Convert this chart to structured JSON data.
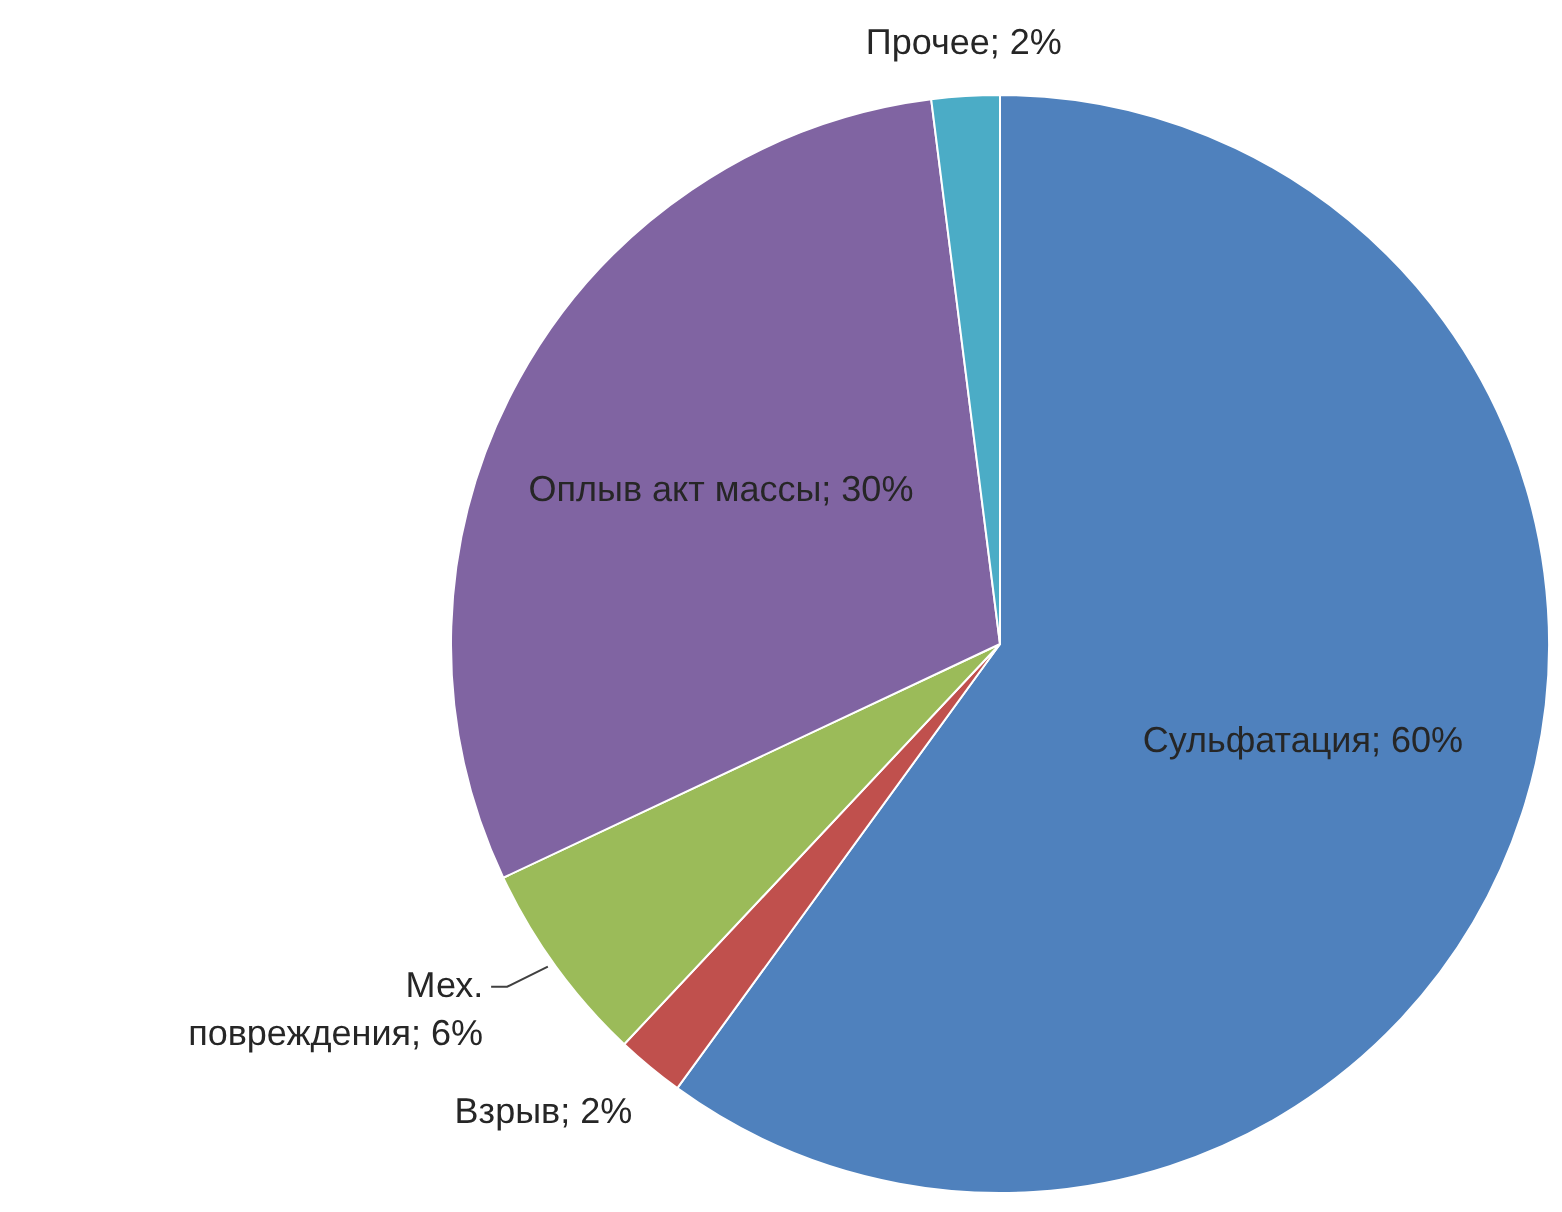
{
  "chart_data": {
    "type": "pie",
    "categories": [
      "Сульфатация",
      "Взрыв",
      "Мех. повреждения",
      "Оплыв акт массы",
      "Прочее"
    ],
    "values": [
      60,
      2,
      6,
      30,
      2
    ],
    "colors": [
      "#4f81bd",
      "#c0504d",
      "#9bbb59",
      "#8064a2",
      "#4bacc6"
    ],
    "value_labels": [
      "60%",
      "2%",
      "6%",
      "30%",
      "2%"
    ]
  }
}
